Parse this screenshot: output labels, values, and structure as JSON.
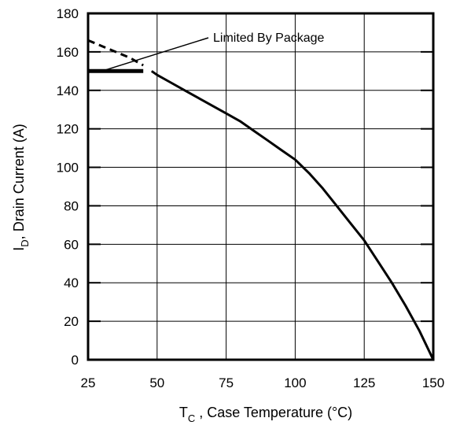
{
  "chart_data": {
    "type": "line",
    "title": "",
    "xlabel_main": "T",
    "xlabel_sub": "C",
    "xlabel_rest": " , Case Temperature (°C)",
    "ylabel_main": "I",
    "ylabel_sub": "D",
    "ylabel_rest": ",  Drain Current (A)",
    "xlim": [
      25,
      150
    ],
    "ylim": [
      0,
      180
    ],
    "x_ticks": [
      25,
      50,
      75,
      100,
      125,
      150
    ],
    "y_ticks": [
      0,
      20,
      40,
      60,
      80,
      100,
      120,
      140,
      160,
      180
    ],
    "grid": true,
    "series": [
      {
        "style": "solid",
        "x": [
          25,
          30,
          35,
          40,
          45,
          50,
          55,
          60,
          65,
          70,
          75,
          80,
          85,
          90,
          95,
          100,
          105,
          110,
          115,
          120,
          125,
          130,
          135,
          140,
          145,
          150
        ],
        "y": [
          166,
          163,
          160,
          157,
          153,
          148,
          144,
          140,
          136,
          132,
          128,
          124,
          119,
          114,
          109,
          104,
          97,
          89,
          80,
          71,
          62,
          51,
          40,
          28,
          15,
          0
        ]
      },
      {
        "style": "dashed",
        "x": [
          25,
          30,
          35,
          40,
          45
        ],
        "y": [
          166,
          163,
          160,
          157,
          153
        ]
      },
      {
        "style": "thick",
        "x": [
          25,
          45
        ],
        "y": [
          150,
          150
        ]
      }
    ],
    "annotations": [
      {
        "text": "Limited By Package",
        "x": 30,
        "y": 150
      }
    ]
  }
}
